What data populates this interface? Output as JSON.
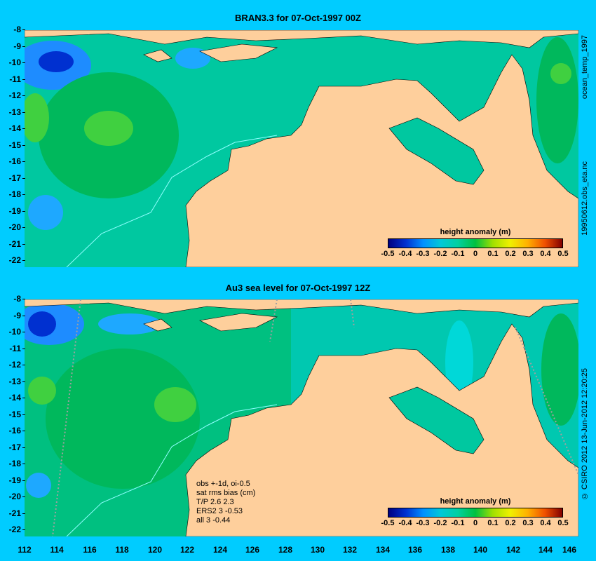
{
  "panels": [
    {
      "title": "BRAN3.3 for 07-Oct-1997 00Z",
      "side_label": "19950612.obs_eta.nc"
    },
    {
      "title": "Au3 sea level  for 07-Oct-1997 12Z",
      "side_label": "© CSIRO 2012  13-Jun-2012 12:20:25"
    }
  ],
  "top_right_label": "ocean_temp_1997",
  "colorbar": {
    "title": "height anomaly (m)",
    "ticks": [
      "-0.5",
      "-0.4",
      "-0.3",
      "-0.2",
      "-0.1",
      "0",
      "0.1",
      "0.2",
      "0.3",
      "0.4",
      "0.5"
    ]
  },
  "y_ticks": [
    "-8",
    "-9",
    "-10",
    "-11",
    "-12",
    "-13",
    "-14",
    "-15",
    "-16",
    "-17",
    "-18",
    "-19",
    "-20",
    "-21",
    "-22"
  ],
  "x_ticks": [
    "112",
    "114",
    "116",
    "118",
    "120",
    "122",
    "124",
    "126",
    "128",
    "130",
    "132",
    "134",
    "136",
    "138",
    "140",
    "142",
    "144",
    "146"
  ],
  "stats": {
    "lines": [
      "obs +-1d, oi-0.5",
      "sat rms bias (cm)",
      "T/P  2.6 2.3",
      "ERS2 3 -0.53",
      "all 3 -0.44"
    ]
  },
  "colors": {
    "background": "#00ccff",
    "land": "#fecf9c",
    "deep_blue": "#0030d0",
    "teal": "#00c8a0",
    "green": "#40d040"
  }
}
